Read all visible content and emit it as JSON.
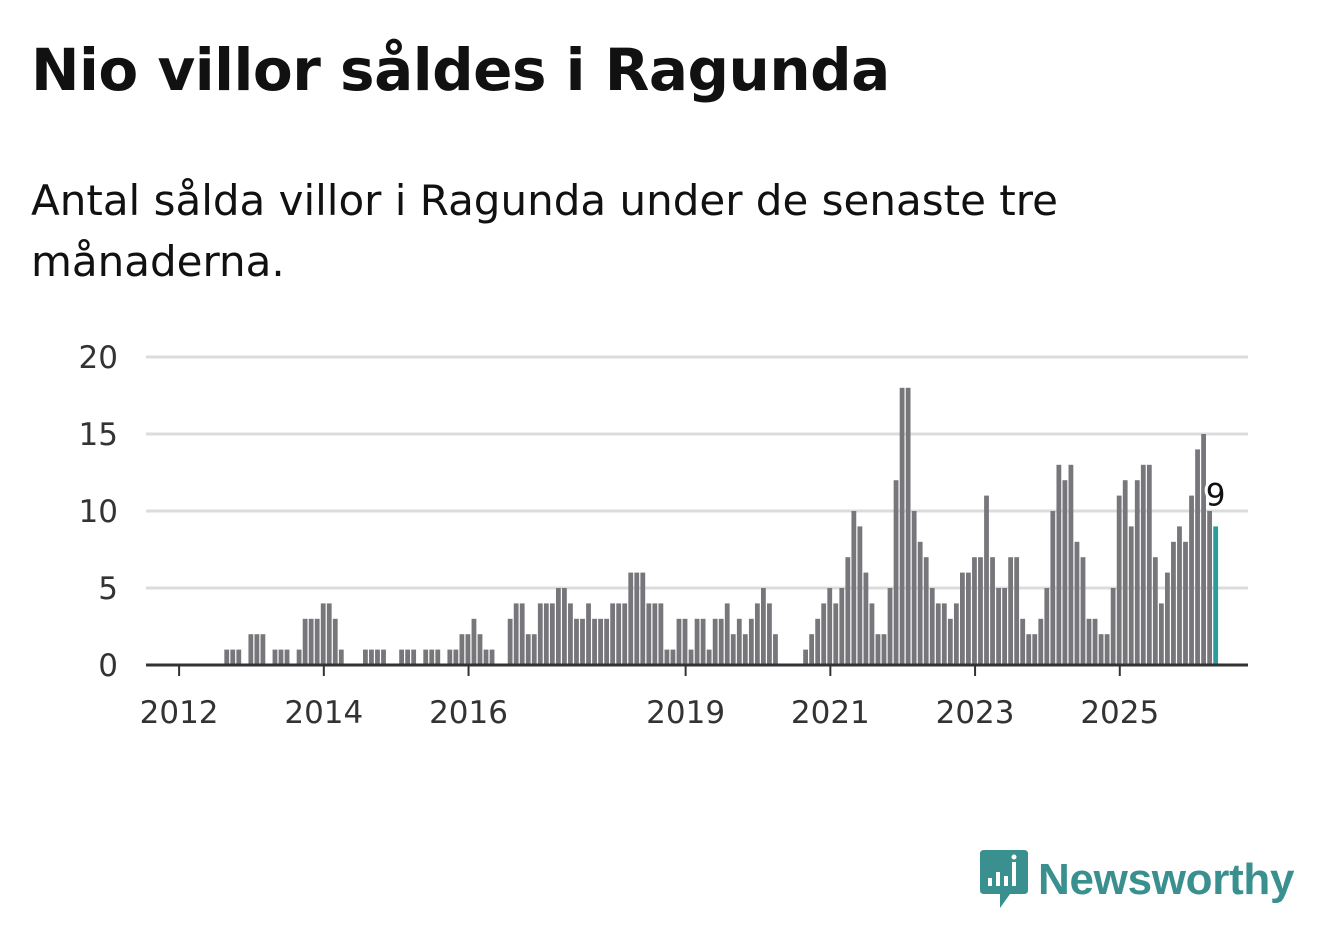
{
  "title": "Nio villor såldes i Ragunda",
  "subtitle": "Antal sålda villor i Ragunda under de senaste tre månaderna.",
  "brand": {
    "name": "Newsworthy",
    "color": "#3a8f8f",
    "icon": "newsworthy-logo-icon"
  },
  "chart_data": {
    "type": "bar",
    "title": "Nio villor såldes i Ragunda",
    "xlabel": "",
    "ylabel": "",
    "ylim": [
      0,
      20
    ],
    "yticks": [
      0,
      5,
      10,
      15,
      20
    ],
    "grid": true,
    "bar_color": "#77767b",
    "highlight_color": "#2a9d9d",
    "start": "2011-10",
    "xtick_labels": [
      {
        "label": "2012",
        "period": "2012-01"
      },
      {
        "label": "2014",
        "period": "2014-01"
      },
      {
        "label": "2016",
        "period": "2016-01"
      },
      {
        "label": "2019",
        "period": "2019-01"
      },
      {
        "label": "2021",
        "period": "2021-01"
      },
      {
        "label": "2023",
        "period": "2023-01"
      },
      {
        "label": "2025",
        "period": "2025-01"
      }
    ],
    "values": [
      0,
      0,
      0,
      0,
      0,
      0,
      0,
      0,
      0,
      0,
      0,
      1,
      1,
      1,
      0,
      2,
      2,
      2,
      0,
      1,
      1,
      1,
      0,
      1,
      3,
      3,
      3,
      4,
      4,
      3,
      1,
      0,
      0,
      0,
      1,
      1,
      1,
      1,
      0,
      0,
      1,
      1,
      1,
      0,
      1,
      1,
      1,
      0,
      1,
      1,
      2,
      2,
      3,
      2,
      1,
      1,
      0,
      0,
      3,
      4,
      4,
      2,
      2,
      4,
      4,
      4,
      5,
      5,
      4,
      3,
      3,
      4,
      3,
      3,
      3,
      4,
      4,
      4,
      6,
      6,
      6,
      4,
      4,
      4,
      1,
      1,
      3,
      3,
      1,
      3,
      3,
      1,
      3,
      3,
      4,
      2,
      3,
      2,
      3,
      4,
      5,
      4,
      2,
      0,
      0,
      0,
      0,
      1,
      2,
      3,
      4,
      5,
      4,
      5,
      7,
      10,
      9,
      6,
      4,
      2,
      2,
      5,
      12,
      18,
      18,
      10,
      8,
      7,
      5,
      4,
      4,
      3,
      4,
      6,
      6,
      7,
      7,
      11,
      7,
      5,
      5,
      7,
      7,
      3,
      2,
      2,
      3,
      5,
      10,
      13,
      12,
      13,
      8,
      7,
      3,
      3,
      2,
      2,
      5,
      11,
      12,
      9,
      12,
      13,
      13,
      7,
      4,
      6,
      8,
      9,
      8,
      11,
      14,
      15,
      10,
      9
    ],
    "highlight_last": 1,
    "annotations": [
      {
        "text": "9",
        "target": "last_bar"
      }
    ]
  }
}
